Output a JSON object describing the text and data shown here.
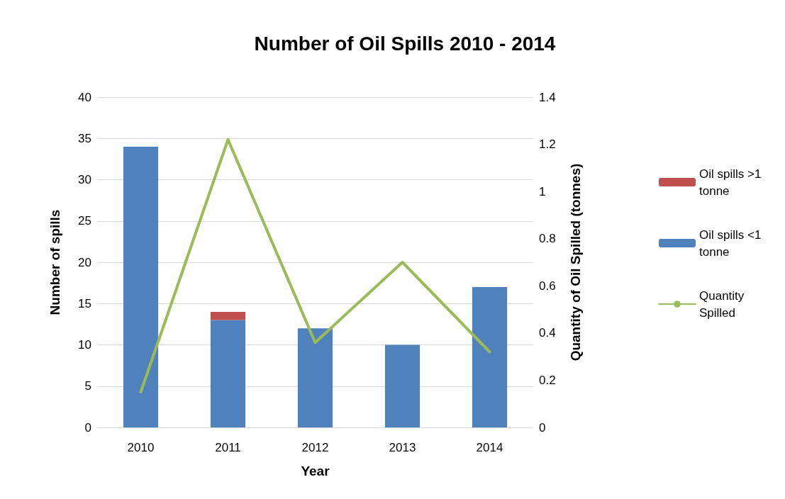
{
  "chart_data": {
    "type": "bar",
    "title": "Number of Oil Spills 2010 - 2014",
    "xlabel": "Year",
    "ylabel": "Number of spills",
    "y2label": "Quantity of Oil Spilled (tonnes)",
    "categories": [
      "2010",
      "2011",
      "2012",
      "2013",
      "2014"
    ],
    "stacked": true,
    "series": [
      {
        "name": "Oil spills <1 tonne",
        "color": "#4f81bd",
        "values": [
          34,
          13,
          12,
          10,
          17
        ]
      },
      {
        "name": "Oil spills >1 tonne",
        "color": "#c0504d",
        "values": [
          0,
          1,
          0,
          0,
          0
        ]
      },
      {
        "name": "Quantity Spilled",
        "type": "line",
        "axis": "y2",
        "color": "#9bbb59",
        "values": [
          0.15,
          1.22,
          0.36,
          0.7,
          0.32
        ]
      }
    ],
    "ylim": [
      0,
      40
    ],
    "yticks": [
      0,
      5,
      10,
      15,
      20,
      25,
      30,
      35,
      40
    ],
    "y2lim": [
      0,
      1.4
    ],
    "y2ticks": [
      0,
      0.2,
      0.4,
      0.6,
      0.8,
      1,
      1.2,
      1.4
    ],
    "grid": "y",
    "legend": "right",
    "marker": "none"
  }
}
